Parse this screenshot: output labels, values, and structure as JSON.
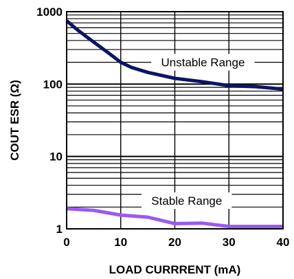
{
  "chart_data": {
    "type": "line",
    "title": "",
    "xlabel": "LOAD CURRRENT (mA)",
    "ylabel": "COUT ESR (Ω)",
    "x_scale": "linear",
    "y_scale": "log",
    "xlim": [
      0,
      40
    ],
    "ylim": [
      1,
      1000
    ],
    "x_ticks": [
      0,
      10,
      20,
      30,
      40
    ],
    "y_ticks": [
      1,
      10,
      100,
      1000
    ],
    "x_tick_labels": [
      "0",
      "10",
      "20",
      "30",
      "40"
    ],
    "y_tick_labels": [
      "1",
      "10",
      "100",
      "1000"
    ],
    "grid": true,
    "series": [
      {
        "color": "#0c1466",
        "x": [
          0,
          2,
          5,
          8,
          10,
          12,
          15,
          20,
          25,
          28,
          30,
          35,
          40
        ],
        "y": [
          750,
          560,
          380,
          260,
          200,
          170,
          145,
          120,
          108,
          100,
          95,
          92,
          85
        ]
      },
      {
        "color": "#9b59f0",
        "x": [
          0,
          5,
          10,
          15,
          20,
          25,
          30,
          35,
          40
        ],
        "y": [
          1.9,
          1.8,
          1.55,
          1.45,
          1.18,
          1.2,
          1.08,
          1.08,
          1.08
        ]
      }
    ],
    "annotations": [
      {
        "text": "Unstable Range",
        "x": 25.2,
        "y": 200
      },
      {
        "text": "Stable Range",
        "x": 22.2,
        "y": 2.45
      }
    ]
  }
}
